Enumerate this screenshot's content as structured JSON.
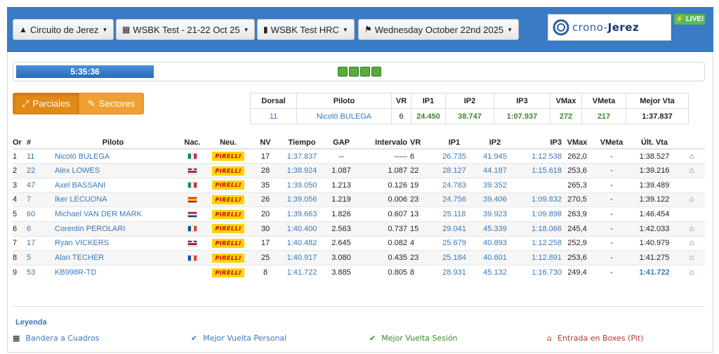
{
  "header": {
    "circuit_label": "Circuito de Jerez",
    "session_label": "WSBK Test - 21-22 Oct 25",
    "team_label": "WSBK Test HRC",
    "date_label": "Wednesday October 22nd 2025",
    "logo_text_a": "crono-",
    "logo_text_b": "Jerez",
    "live_badge": "LIVE!"
  },
  "timer": {
    "value": "5:35:36",
    "lights_count": 4,
    "progress": 0.2
  },
  "view_buttons": {
    "parciales": "Parciales",
    "sectores": "Sectores"
  },
  "summary": {
    "headers": [
      "Dorsal",
      "Piloto",
      "VR",
      "IP1",
      "IP2",
      "IP3",
      "VMax",
      "VMeta",
      "Mejor Vta"
    ],
    "values": [
      "11",
      "Nicolò BULEGA",
      "6",
      "24.450",
      "38.747",
      "1:07.937",
      "272",
      "217",
      "1:37.837"
    ]
  },
  "table": {
    "headers": [
      "Or",
      "#",
      "Piloto",
      "Nac.",
      "Neu.",
      "NV",
      "Tiempo",
      "GAP",
      "Intervalo",
      "VR",
      "IP1",
      "IP2",
      "IP3",
      "VMax",
      "VMeta",
      "Últ. Vta"
    ],
    "rows": [
      {
        "or": "1",
        "num": "11",
        "piloto": "Nicolò BULEGA",
        "nac": "it",
        "neu": "PIRELLI",
        "nv": "17",
        "tiempo": "1:37.837",
        "gap": "--",
        "int": "-----",
        "vr": "6",
        "ip1": "26.735",
        "ip2": "41.945",
        "ip3": "1:12.538",
        "vmax": "262,0",
        "vmeta": "-",
        "ult": "1:38.527",
        "pit": true
      },
      {
        "or": "2",
        "num": "22",
        "piloto": "Alex LOWES",
        "nac": "gb",
        "neu": "PIRELLI",
        "nv": "28",
        "tiempo": "1:38.924",
        "gap": "1.087",
        "int": "1.087",
        "vr": "22",
        "ip1": "28.127",
        "ip2": "44.187",
        "ip3": "1:15.618",
        "vmax": "253,6",
        "vmeta": "-",
        "ult": "1:39.216",
        "pit": true
      },
      {
        "or": "3",
        "num": "47",
        "piloto": "Axel BASSANI",
        "nac": "it",
        "neu": "PIRELLI",
        "nv": "35",
        "tiempo": "1:39.050",
        "gap": "1.213",
        "int": "0.126",
        "vr": "19",
        "ip1": "24.783",
        "ip2": "39.352",
        "ip3": "",
        "vmax": "265,3",
        "vmeta": "-",
        "ult": "1:39.489",
        "pit": false
      },
      {
        "or": "4",
        "num": "7",
        "piloto": "Iker LECUONA",
        "nac": "es",
        "neu": "PIRELLI",
        "nv": "26",
        "tiempo": "1:39.056",
        "gap": "1.219",
        "int": "0.006",
        "vr": "23",
        "ip1": "24.756",
        "ip2": "39.406",
        "ip3": "1:09.832",
        "vmax": "270,5",
        "vmeta": "-",
        "ult": "1:39.122",
        "pit": true
      },
      {
        "or": "5",
        "num": "60",
        "piloto": "Michael VAN DER MARK",
        "nac": "nl",
        "neu": "PIRELLI",
        "nv": "20",
        "tiempo": "1:39.663",
        "gap": "1.826",
        "int": "0.607",
        "vr": "13",
        "ip1": "25.118",
        "ip2": "39.923",
        "ip3": "1:09.898",
        "vmax": "263,9",
        "vmeta": "-",
        "ult": "1:46.454",
        "pit": false
      },
      {
        "or": "6",
        "num": "6",
        "piloto": "Corentin PEROLARI",
        "nac": "fr",
        "neu": "PIRELLI",
        "nv": "30",
        "tiempo": "1:40.400",
        "gap": "2.563",
        "int": "0.737",
        "vr": "15",
        "ip1": "29.041",
        "ip2": "45.339",
        "ip3": "1:18.066",
        "vmax": "245,4",
        "vmeta": "-",
        "ult": "1:42.033",
        "pit": true
      },
      {
        "or": "7",
        "num": "17",
        "piloto": "Ryan VICKERS",
        "nac": "gb",
        "neu": "PIRELLI",
        "nv": "17",
        "tiempo": "1:40.482",
        "gap": "2.645",
        "int": "0.082",
        "vr": "4",
        "ip1": "25.679",
        "ip2": "40.893",
        "ip3": "1:12.258",
        "vmax": "252,9",
        "vmeta": "-",
        "ult": "1:40.979",
        "pit": true
      },
      {
        "or": "8",
        "num": "5",
        "piloto": "Alan TECHER",
        "nac": "fr",
        "neu": "PIRELLI",
        "nv": "25",
        "tiempo": "1:40.917",
        "gap": "3.080",
        "int": "0.435",
        "vr": "23",
        "ip1": "25.184",
        "ip2": "40.601",
        "ip3": "1:12.891",
        "vmax": "253,6",
        "vmeta": "-",
        "ult": "1:41.275",
        "pit": true
      },
      {
        "or": "9",
        "num": "53",
        "piloto": "KB998R-TD",
        "nac": "",
        "neu": "PIRELLI",
        "nv": "8",
        "tiempo": "1:41.722",
        "gap": "3.885",
        "int": "0.805",
        "vr": "8",
        "ip1": "28.931",
        "ip2": "45.132",
        "ip3": "1:16.730",
        "vmax": "249,4",
        "vmeta": "-",
        "ult": "1:41.722",
        "ult_blue": true,
        "pit": true
      }
    ]
  },
  "legend": {
    "title": "Leyenda",
    "items": [
      "Bandera a Cuadros",
      "Mejor Vuelta Personal",
      "Mejor Vuelta Sesión",
      "Entrada en Boxes (Pit)"
    ]
  },
  "colors": {
    "header_blue": "#3a7bc6",
    "orange": "#f0a033",
    "link_blue": "#3a78b8",
    "best_green": "#3a8a2a",
    "pit_red": "#b23a2a"
  }
}
